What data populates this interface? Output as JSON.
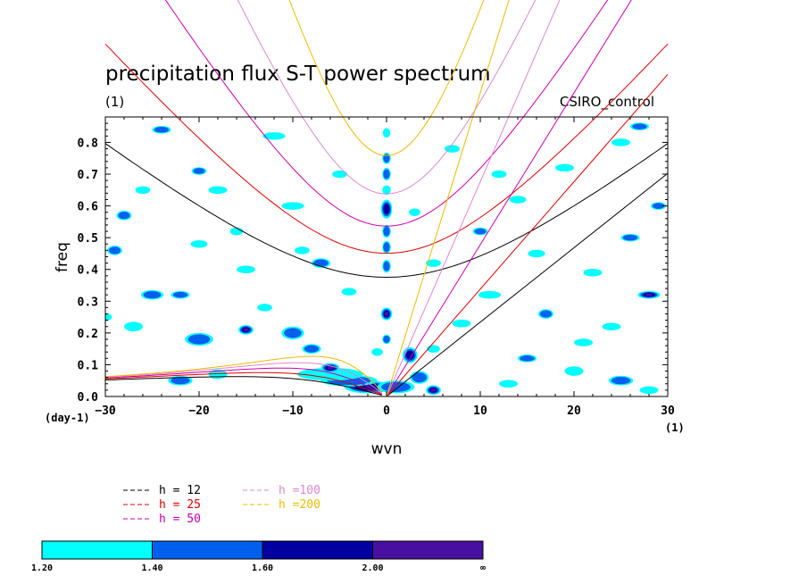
{
  "chart_data": {
    "type": "heatmap",
    "title": "precipitation flux S-T power spectrum",
    "subtitle_left": "(1)",
    "subtitle_right": "CSIRO_control",
    "xlabel": "wvn",
    "ylabel": "freq",
    "x_unit": "(1)",
    "y_unit": "(day-1)",
    "xlim": [
      -30,
      30
    ],
    "ylim": [
      0,
      0.88
    ],
    "xticks": [
      -30,
      -20,
      -10,
      0,
      10,
      20,
      30
    ],
    "xtick_labels": [
      "-30",
      "-20",
      "-10",
      "0",
      "10",
      "20",
      "30"
    ],
    "yticks": [
      0,
      0.1,
      0.2,
      0.3,
      0.4,
      0.5,
      0.6,
      0.7,
      0.8
    ],
    "ytick_labels": [
      "0.0",
      "0.1",
      "0.2",
      "0.3",
      "0.4",
      "0.5",
      "0.6",
      "0.7",
      "0.8"
    ],
    "dispersion_curves": [
      {
        "name": "h = 12",
        "h": 12,
        "color": "#000000"
      },
      {
        "name": "h = 25",
        "h": 25,
        "color": "#dd0000"
      },
      {
        "name": "h = 50",
        "h": 50,
        "color": "#cc00aa"
      },
      {
        "name": "h =100",
        "h": 100,
        "color": "#dd88cc"
      },
      {
        "name": "h =200",
        "h": 200,
        "color": "#eebb00"
      }
    ],
    "colorbar": {
      "levels": [
        "1.20",
        "1.40",
        "1.60",
        "2.00",
        "∞"
      ],
      "colors": [
        "#00ffff",
        "#0060ee",
        "#0000a0",
        "#4810a0"
      ]
    },
    "blobs": [
      {
        "x": 0,
        "y": 0.75,
        "rx": 0.45,
        "ry": 0.018,
        "level": 1
      },
      {
        "x": 0,
        "y": 0.7,
        "rx": 0.45,
        "ry": 0.02,
        "level": 1
      },
      {
        "x": 0,
        "y": 0.65,
        "rx": 0.45,
        "ry": 0.015,
        "level": 0
      },
      {
        "x": 0,
        "y": 0.59,
        "rx": 0.6,
        "ry": 0.03,
        "level": 2
      },
      {
        "x": 0,
        "y": 0.52,
        "rx": 0.45,
        "ry": 0.02,
        "level": 1
      },
      {
        "x": 0,
        "y": 0.47,
        "rx": 0.45,
        "ry": 0.02,
        "level": 1
      },
      {
        "x": 0,
        "y": 0.41,
        "rx": 0.45,
        "ry": 0.02,
        "level": 1
      },
      {
        "x": 0,
        "y": 0.26,
        "rx": 0.6,
        "ry": 0.02,
        "level": 3
      },
      {
        "x": 0,
        "y": 0.18,
        "rx": 0.45,
        "ry": 0.015,
        "level": 1
      },
      {
        "x": 0,
        "y": 0.83,
        "rx": 0.4,
        "ry": 0.015,
        "level": 0
      },
      {
        "x": -2,
        "y": 0.03,
        "rx": 2.5,
        "ry": 0.02,
        "level": 2
      },
      {
        "x": -4,
        "y": 0.05,
        "rx": 3,
        "ry": 0.018,
        "level": 1
      },
      {
        "x": -6,
        "y": 0.07,
        "rx": 3.5,
        "ry": 0.02,
        "level": 0
      },
      {
        "x": 1,
        "y": 0.03,
        "rx": 2,
        "ry": 0.02,
        "level": 1
      },
      {
        "x": 2.5,
        "y": 0.13,
        "rx": 0.8,
        "ry": 0.025,
        "level": 2
      },
      {
        "x": 3.5,
        "y": 0.06,
        "rx": 1.0,
        "ry": 0.02,
        "level": 1
      },
      {
        "x": 5,
        "y": 0.02,
        "rx": 0.8,
        "ry": 0.015,
        "level": 3
      },
      {
        "x": -15,
        "y": 0.21,
        "rx": 0.8,
        "ry": 0.015,
        "level": 3
      },
      {
        "x": -10,
        "y": 0.2,
        "rx": 1.2,
        "ry": 0.02,
        "level": 1
      },
      {
        "x": -20,
        "y": 0.18,
        "rx": 1.5,
        "ry": 0.02,
        "level": 1
      },
      {
        "x": -8,
        "y": 0.15,
        "rx": 1.0,
        "ry": 0.015,
        "level": 1
      },
      {
        "x": -25,
        "y": 0.32,
        "rx": 1.2,
        "ry": 0.015,
        "level": 1
      },
      {
        "x": -22,
        "y": 0.05,
        "rx": 1.3,
        "ry": 0.015,
        "level": 1
      },
      {
        "x": -18,
        "y": 0.07,
        "rx": 1.0,
        "ry": 0.015,
        "level": 0
      },
      {
        "x": -6,
        "y": 0.09,
        "rx": 1.0,
        "ry": 0.015,
        "level": 3
      },
      {
        "x": -20,
        "y": 0.71,
        "rx": 0.8,
        "ry": 0.012,
        "level": 1
      },
      {
        "x": -28,
        "y": 0.57,
        "rx": 0.8,
        "ry": 0.015,
        "level": 1
      },
      {
        "x": -18,
        "y": 0.65,
        "rx": 1.0,
        "ry": 0.012,
        "level": 0
      },
      {
        "x": -10,
        "y": 0.6,
        "rx": 1.2,
        "ry": 0.012,
        "level": 0
      },
      {
        "x": -5,
        "y": 0.7,
        "rx": 0.8,
        "ry": 0.012,
        "level": 0
      },
      {
        "x": -24,
        "y": 0.84,
        "rx": 1.0,
        "ry": 0.012,
        "level": 1
      },
      {
        "x": -12,
        "y": 0.82,
        "rx": 1.2,
        "ry": 0.012,
        "level": 0
      },
      {
        "x": -7,
        "y": 0.42,
        "rx": 1.0,
        "ry": 0.015,
        "level": 1
      },
      {
        "x": -15,
        "y": 0.4,
        "rx": 1.0,
        "ry": 0.012,
        "level": 0
      },
      {
        "x": -27,
        "y": 0.22,
        "rx": 1.0,
        "ry": 0.015,
        "level": 0
      },
      {
        "x": -29,
        "y": 0.46,
        "rx": 0.8,
        "ry": 0.015,
        "level": 1
      },
      {
        "x": -20,
        "y": 0.48,
        "rx": 0.9,
        "ry": 0.012,
        "level": 0
      },
      {
        "x": -22,
        "y": 0.32,
        "rx": 1.0,
        "ry": 0.012,
        "level": 1
      },
      {
        "x": -13,
        "y": 0.28,
        "rx": 0.8,
        "ry": 0.012,
        "level": 0
      },
      {
        "x": -4,
        "y": 0.33,
        "rx": 0.8,
        "ry": 0.012,
        "level": 0
      },
      {
        "x": -1,
        "y": 0.14,
        "rx": 0.6,
        "ry": 0.012,
        "level": 0
      },
      {
        "x": 5,
        "y": 0.15,
        "rx": 0.7,
        "ry": 0.012,
        "level": 0
      },
      {
        "x": 8,
        "y": 0.23,
        "rx": 1.0,
        "ry": 0.012,
        "level": 0
      },
      {
        "x": 11,
        "y": 0.32,
        "rx": 1.2,
        "ry": 0.012,
        "level": 0
      },
      {
        "x": 17,
        "y": 0.26,
        "rx": 0.8,
        "ry": 0.015,
        "level": 1
      },
      {
        "x": 22,
        "y": 0.39,
        "rx": 1.0,
        "ry": 0.012,
        "level": 0
      },
      {
        "x": 26,
        "y": 0.5,
        "rx": 1.0,
        "ry": 0.012,
        "level": 1
      },
      {
        "x": 28,
        "y": 0.32,
        "rx": 1.2,
        "ry": 0.012,
        "level": 3
      },
      {
        "x": 14,
        "y": 0.62,
        "rx": 0.9,
        "ry": 0.012,
        "level": 0
      },
      {
        "x": 10,
        "y": 0.52,
        "rx": 0.8,
        "ry": 0.012,
        "level": 1
      },
      {
        "x": 19,
        "y": 0.72,
        "rx": 1.0,
        "ry": 0.012,
        "level": 0
      },
      {
        "x": 25,
        "y": 0.8,
        "rx": 1.0,
        "ry": 0.012,
        "level": 0
      },
      {
        "x": 27,
        "y": 0.85,
        "rx": 1.0,
        "ry": 0.012,
        "level": 1
      },
      {
        "x": 7,
        "y": 0.78,
        "rx": 0.8,
        "ry": 0.012,
        "level": 0
      },
      {
        "x": 5,
        "y": 0.42,
        "rx": 0.8,
        "ry": 0.012,
        "level": 0
      },
      {
        "x": 15,
        "y": 0.12,
        "rx": 1.0,
        "ry": 0.012,
        "level": 1
      },
      {
        "x": 20,
        "y": 0.08,
        "rx": 1.0,
        "ry": 0.015,
        "level": 0
      },
      {
        "x": 25,
        "y": 0.05,
        "rx": 1.3,
        "ry": 0.015,
        "level": 1
      },
      {
        "x": 28,
        "y": 0.02,
        "rx": 1.0,
        "ry": 0.012,
        "level": 0
      },
      {
        "x": 13,
        "y": 0.04,
        "rx": 1.0,
        "ry": 0.012,
        "level": 0
      },
      {
        "x": 21,
        "y": 0.17,
        "rx": 1.0,
        "ry": 0.012,
        "level": 0
      },
      {
        "x": 24,
        "y": 0.22,
        "rx": 1.0,
        "ry": 0.012,
        "level": 0
      },
      {
        "x": 29,
        "y": 0.6,
        "rx": 0.8,
        "ry": 0.012,
        "level": 1
      },
      {
        "x": -26,
        "y": 0.65,
        "rx": 0.8,
        "ry": 0.012,
        "level": 0
      },
      {
        "x": -16,
        "y": 0.52,
        "rx": 0.7,
        "ry": 0.012,
        "level": 0
      },
      {
        "x": -9,
        "y": 0.46,
        "rx": 0.8,
        "ry": 0.012,
        "level": 0
      },
      {
        "x": 3,
        "y": 0.58,
        "rx": 0.6,
        "ry": 0.012,
        "level": 0
      },
      {
        "x": 16,
        "y": 0.45,
        "rx": 0.9,
        "ry": 0.012,
        "level": 0
      },
      {
        "x": 12,
        "y": 0.7,
        "rx": 0.8,
        "ry": 0.012,
        "level": 0
      },
      {
        "x": -30,
        "y": 0.25,
        "rx": 0.7,
        "ry": 0.012,
        "level": 0
      }
    ]
  }
}
